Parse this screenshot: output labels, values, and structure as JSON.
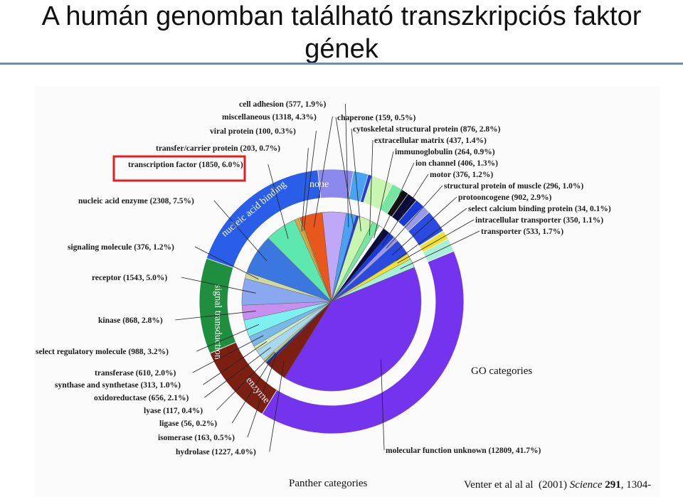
{
  "slide": {
    "title_line1": "A humán genomban található transzkripciós faktor",
    "title_line2": "gének",
    "citation_authors": "Venter et al al al",
    "citation_year": "(2001)",
    "citation_journal": "Science",
    "citation_volume": "291",
    "citation_pages": ", 1304-"
  },
  "chart_data": {
    "type": "pie",
    "title": "",
    "outer_ring_label": "GO categories",
    "inner_pie_label": "Panther categories",
    "ring_categories": [
      {
        "label": "nucleic acid binding",
        "color": "#2a5ee8",
        "start_pct": 0.0,
        "end_pct": 15.8
      },
      {
        "label": "none",
        "color": "#8b88ee",
        "start_pct": 15.8,
        "end_pct": 20.6
      },
      {
        "label": "signal transduction",
        "color": "#1f8e3f",
        "start_pct": 70.7,
        "end_pct": 82.0
      },
      {
        "label": "enzyme",
        "color": "#7a1f12",
        "start_pct": 58.7,
        "end_pct": 70.7
      },
      {
        "label": "molecular function unknown",
        "color": "#7433ec",
        "start_pct": 30.0,
        "end_pct": 58.7
      }
    ],
    "slices": [
      {
        "label": "cell adhesion (577, 1.9%)",
        "name": "cell adhesion",
        "count": 577,
        "pct": 1.9,
        "color": "#4aa3f2"
      },
      {
        "label": "chaperone (159, 0.5%)",
        "name": "chaperone",
        "count": 159,
        "pct": 0.5,
        "color": "#2b3bd6"
      },
      {
        "label": "cytoskeletal structural protein (876, 2.8%)",
        "name": "cytoskeletal structural protein",
        "count": 876,
        "pct": 2.8,
        "color": "#c8f5b0"
      },
      {
        "label": "extracellular matrix (437, 1.4%)",
        "name": "extracellular matrix",
        "count": 437,
        "pct": 1.4,
        "color": "#77e6a0"
      },
      {
        "label": "immunoglobulin (264, 0.9%)",
        "name": "immunoglobulin",
        "count": 264,
        "pct": 0.9,
        "color": "#ffffff"
      },
      {
        "label": "ion channel (406, 1.3%)",
        "name": "ion channel",
        "count": 406,
        "pct": 1.3,
        "color": "#0c0c3a"
      },
      {
        "label": "motor (376, 1.2%)",
        "name": "motor",
        "count": 376,
        "pct": 1.2,
        "color": "#1a3ad8"
      },
      {
        "label": "structural protein of muscle (296, 1.0%)",
        "name": "structural protein of muscle",
        "count": 296,
        "pct": 1.0,
        "color": "#9a9ae8"
      },
      {
        "label": "protooncogene (902, 2.9%)",
        "name": "protooncogene",
        "count": 902,
        "pct": 2.9,
        "color": "#2a4ae0"
      },
      {
        "label": "select calcium binding protein (34, 0.1%)",
        "name": "select calcium binding protein",
        "count": 34,
        "pct": 0.1,
        "color": "#5bd0f0"
      },
      {
        "label": "intracellular transporter (350, 1.1%)",
        "name": "intracellular transporter",
        "count": 350,
        "pct": 1.1,
        "color": "#f2e030"
      },
      {
        "label": "transporter (533, 1.7%)",
        "name": "transporter",
        "count": 533,
        "pct": 1.7,
        "color": "#a8f0d8"
      },
      {
        "label": "molecular function unknown (12809, 41.7%)",
        "name": "molecular function unknown",
        "count": 12809,
        "pct": 41.7,
        "color": "#7433ec"
      },
      {
        "label": "hydrolase (1227, 4.0%)",
        "name": "hydrolase",
        "count": 1227,
        "pct": 4.0,
        "color": "#7a1f12"
      },
      {
        "label": "isomerase (163, 0.5%)",
        "name": "isomerase",
        "count": 163,
        "pct": 0.5,
        "color": "#2b2bb8"
      },
      {
        "label": "ligase (56, 0.2%)",
        "name": "ligase",
        "count": 56,
        "pct": 0.2,
        "color": "#6ae8c8"
      },
      {
        "label": "lyase (117, 0.4%)",
        "name": "lyase",
        "count": 117,
        "pct": 0.4,
        "color": "#e8d860"
      },
      {
        "label": "oxidoreductase (656, 2.1%)",
        "name": "oxidoreductase",
        "count": 656,
        "pct": 2.1,
        "color": "#a8d8f0"
      },
      {
        "label": "synthase and synthetase (313, 1.0%)",
        "name": "synthase and synthetase",
        "count": 313,
        "pct": 1.0,
        "color": "#cfe8c0"
      },
      {
        "label": "transferase (610, 2.0%)",
        "name": "transferase",
        "count": 610,
        "pct": 2.0,
        "color": "#7ab8e8"
      },
      {
        "label": "select regulatory molecule (988, 3.2%)",
        "name": "select regulatory molecule",
        "count": 988,
        "pct": 3.2,
        "color": "#7ff0f0"
      },
      {
        "label": "kinase (868, 2.8%)",
        "name": "kinase",
        "count": 868,
        "pct": 2.8,
        "color": "#c890ee"
      },
      {
        "label": "receptor (1543, 5.0%)",
        "name": "receptor",
        "count": 1543,
        "pct": 5.0,
        "color": "#8aa8f0"
      },
      {
        "label": "signaling molecule (376, 1.2%)",
        "name": "signaling molecule",
        "count": 376,
        "pct": 1.2,
        "color": "#d0d8a0"
      },
      {
        "label": "nucleic acid enzyme (2308, 7.5%)",
        "name": "nucleic acid enzyme",
        "count": 2308,
        "pct": 7.5,
        "color": "#3a78e0"
      },
      {
        "label": "transcription factor (1850, 6.0%)",
        "name": "transcription factor",
        "count": 1850,
        "pct": 6.0,
        "color": "#5ee8b0"
      },
      {
        "label": "transfer/carrier protein (203, 0.7%)",
        "name": "transfer/carrier protein",
        "count": 203,
        "pct": 0.7,
        "color": "#e8a040"
      },
      {
        "label": "viral protein (100, 0.3%)",
        "name": "viral protein",
        "count": 100,
        "pct": 0.3,
        "color": "#a0e860"
      },
      {
        "label": "miscellaneous (1318, 4.3%)",
        "name": "miscellaneous",
        "count": 1318,
        "pct": 4.3,
        "color": "#e8581c"
      },
      {
        "label": "none",
        "name": "none",
        "count": null,
        "pct": 4.5,
        "color": "#c0a8f8"
      }
    ],
    "highlighted_slice": "transcription factor (1850, 6.0%)",
    "highlight_color": "#e02020",
    "legend": "none"
  }
}
